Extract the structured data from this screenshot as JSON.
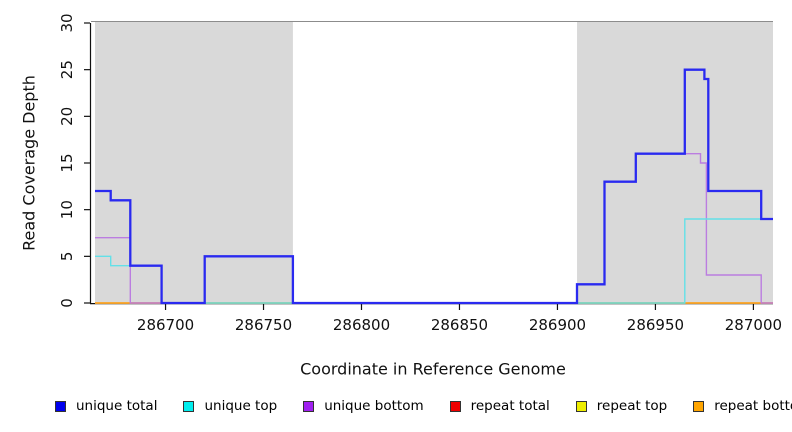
{
  "chart_data": {
    "type": "line",
    "step": true,
    "title": "",
    "xlabel": "Coordinate in Reference Genome",
    "ylabel": "Read Coverage Depth",
    "xlim": [
      286664,
      287010
    ],
    "ylim": [
      0,
      30
    ],
    "xticks": [
      286700,
      286750,
      286800,
      286850,
      286900,
      286950,
      287000
    ],
    "yticks": [
      0,
      5,
      10,
      15,
      20,
      25,
      30
    ],
    "grid": false,
    "legend_position": "bottom",
    "shade_color": "#d9d9d9",
    "shaded_regions": [
      [
        286664,
        286765
      ],
      [
        286910,
        287010
      ]
    ],
    "series": [
      {
        "name": "repeat total",
        "line_color": "#e0506a",
        "width": 1.4,
        "points": [
          [
            286664,
            0
          ],
          [
            287010,
            0
          ]
        ]
      },
      {
        "name": "repeat top",
        "line_color": "#e8e840",
        "width": 1.4,
        "points": [
          [
            286664,
            0
          ],
          [
            287010,
            0
          ]
        ]
      },
      {
        "name": "repeat bottom",
        "line_color": "#ffa426",
        "width": 1.4,
        "points": [
          [
            286664,
            0
          ],
          [
            287010,
            0
          ]
        ]
      },
      {
        "name": "unique bottom",
        "line_color": "#bb7de0",
        "width": 1.4,
        "points": [
          [
            286664,
            7
          ],
          [
            286682,
            0
          ],
          [
            286720,
            5
          ],
          [
            286765,
            0
          ],
          [
            286910,
            2
          ],
          [
            286924,
            13
          ],
          [
            286940,
            16
          ],
          [
            286973,
            15
          ],
          [
            286976,
            3
          ],
          [
            287004,
            0
          ],
          [
            287010,
            0
          ]
        ]
      },
      {
        "name": "unique top",
        "line_color": "#63e0e8",
        "width": 1.4,
        "points": [
          [
            286664,
            5
          ],
          [
            286672,
            4
          ],
          [
            286698,
            0
          ],
          [
            286965,
            9
          ],
          [
            287010,
            9
          ]
        ]
      },
      {
        "name": "unique total",
        "line_color": "#2a2af0",
        "width": 2.3,
        "points": [
          [
            286664,
            12
          ],
          [
            286672,
            11
          ],
          [
            286682,
            4
          ],
          [
            286698,
            0
          ],
          [
            286720,
            5
          ],
          [
            286765,
            0
          ],
          [
            286910,
            2
          ],
          [
            286924,
            13
          ],
          [
            286940,
            16
          ],
          [
            286965,
            25
          ],
          [
            286975,
            24
          ],
          [
            286977,
            12
          ],
          [
            287004,
            9
          ],
          [
            287010,
            9
          ]
        ]
      }
    ]
  },
  "legend": {
    "items": [
      {
        "label": "unique total",
        "color": "#0000ee"
      },
      {
        "label": "unique top",
        "color": "#00eeee"
      },
      {
        "label": "unique bottom",
        "color": "#a020f0"
      },
      {
        "label": "repeat total",
        "color": "#ee0000"
      },
      {
        "label": "repeat top",
        "color": "#eeee00"
      },
      {
        "label": "repeat bottom",
        "color": "#ffa500"
      }
    ]
  }
}
